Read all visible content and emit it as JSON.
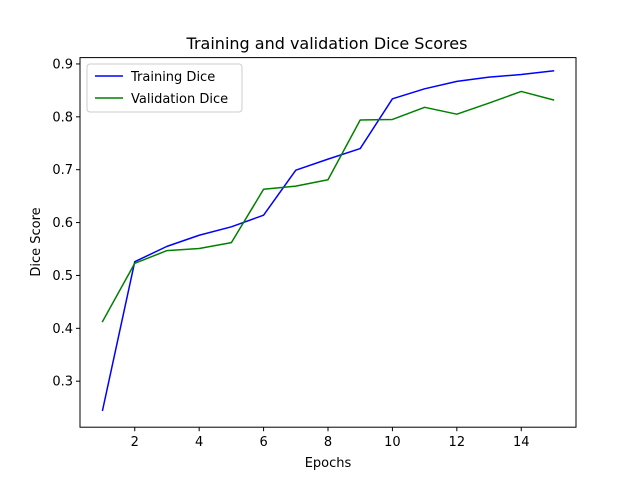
{
  "chart_data": {
    "type": "line",
    "title": "Training and validation Dice Scores",
    "xlabel": "Epochs",
    "ylabel": "Dice Score",
    "xlim": [
      0.3,
      15.7
    ],
    "ylim": [
      0.213,
      0.912
    ],
    "xticks": [
      2,
      4,
      6,
      8,
      10,
      12,
      14
    ],
    "yticks": [
      0.3,
      0.4,
      0.5,
      0.6,
      0.7,
      0.8,
      0.9
    ],
    "grid": false,
    "legend_position": "top-left",
    "x": [
      1,
      2,
      3,
      4,
      5,
      6,
      7,
      8,
      9,
      10,
      11,
      12,
      13,
      14,
      15
    ],
    "series": [
      {
        "name": "Training Dice",
        "color": "#0000ff",
        "values": [
          0.245,
          0.526,
          0.555,
          0.576,
          0.592,
          0.614,
          0.699,
          0.72,
          0.74,
          0.834,
          0.853,
          0.867,
          0.875,
          0.88,
          0.887
        ]
      },
      {
        "name": "Validation Dice",
        "color": "#008000",
        "values": [
          0.413,
          0.523,
          0.547,
          0.551,
          0.562,
          0.663,
          0.669,
          0.681,
          0.794,
          0.795,
          0.818,
          0.805,
          0.826,
          0.848,
          0.832
        ]
      }
    ]
  }
}
